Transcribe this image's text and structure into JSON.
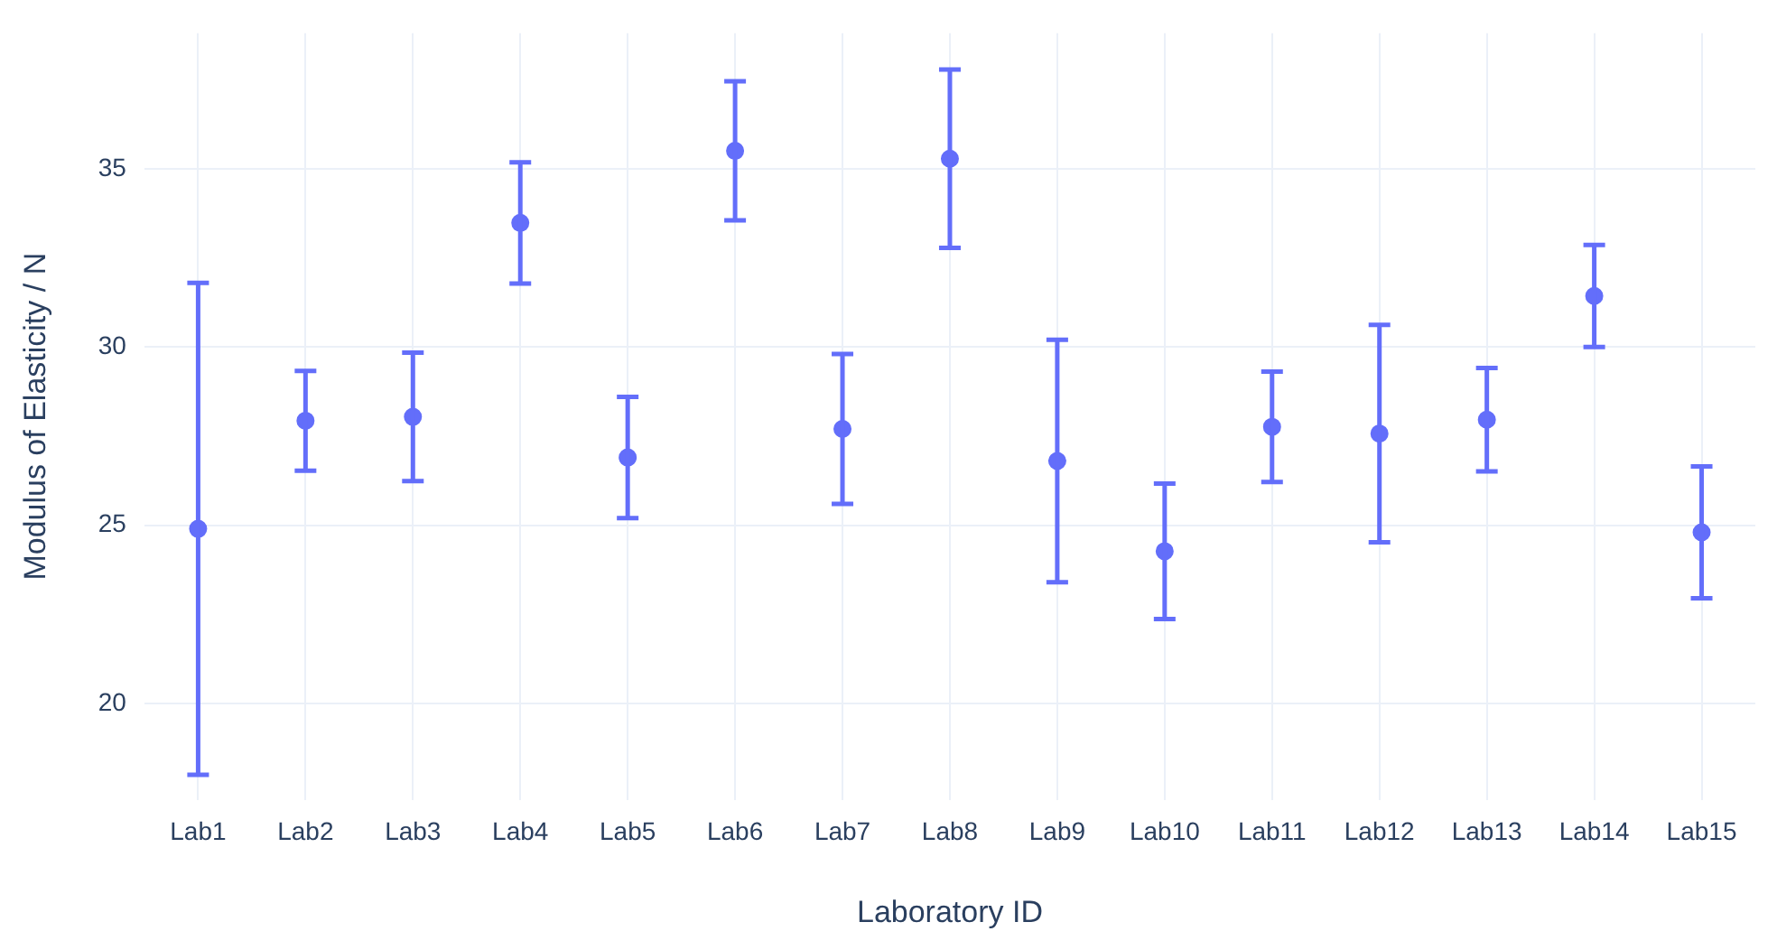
{
  "chart_data": {
    "type": "scatter",
    "xlabel": "Laboratory ID",
    "ylabel": "Modulus of Elasticity / N",
    "categories": [
      "Lab1",
      "Lab2",
      "Lab3",
      "Lab4",
      "Lab5",
      "Lab6",
      "Lab7",
      "Lab8",
      "Lab9",
      "Lab10",
      "Lab11",
      "Lab12",
      "Lab13",
      "Lab14",
      "Lab15"
    ],
    "series": [
      {
        "color": "#636efa",
        "values": [
          24.9,
          27.93,
          28.04,
          33.48,
          26.9,
          35.5,
          27.7,
          35.28,
          26.8,
          24.27,
          27.76,
          27.57,
          27.96,
          31.43,
          24.8
        ],
        "errors": [
          6.9,
          1.4,
          1.8,
          1.7,
          1.7,
          1.95,
          2.1,
          2.5,
          3.4,
          1.9,
          1.55,
          3.05,
          1.45,
          1.43,
          1.85
        ]
      }
    ],
    "ylim": [
      17.3,
      38.8
    ],
    "yticks": [
      20,
      25,
      30,
      35
    ],
    "grid": true,
    "marker": "circle",
    "legend": false
  }
}
